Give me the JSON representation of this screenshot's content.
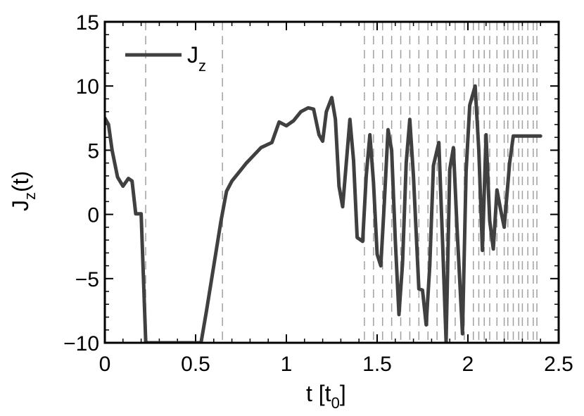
{
  "chart_data": {
    "type": "line",
    "xlabel": {
      "main": "t [t",
      "sub": "0",
      "close": "]"
    },
    "ylabel": {
      "main": "J",
      "sub": "z",
      "tail": "(t)"
    },
    "xlim": [
      0,
      2.5
    ],
    "ylim": [
      -10,
      15
    ],
    "x_ticks": [
      0,
      0.5,
      1,
      1.5,
      2,
      2.5
    ],
    "x_tick_labels": [
      "0",
      "0.5",
      "1",
      "1.5",
      "2",
      "2.5"
    ],
    "y_ticks": [
      -10,
      -5,
      0,
      5,
      10,
      15
    ],
    "y_tick_labels": [
      "−10",
      "−5",
      "0",
      "5",
      "10",
      "15"
    ],
    "x_minor_step": 0.1,
    "y_minor_step": 1,
    "legend": {
      "position": "top-left",
      "main": "J",
      "sub": "z"
    },
    "line_color": "#404040",
    "dashed_line_color": "#a0a0a0",
    "vlines": [
      0.225,
      0.648,
      1.43,
      1.48,
      1.53,
      1.58,
      1.63,
      1.68,
      1.73,
      1.78,
      1.83,
      1.88,
      1.93,
      1.98,
      2.03,
      2.06,
      2.09,
      2.12,
      2.16,
      2.2,
      2.22,
      2.25,
      2.28,
      2.3,
      2.33,
      2.36,
      2.38
    ],
    "series": [
      {
        "x": [
          0,
          0.02,
          0.04,
          0.07,
          0.1,
          0.13,
          0.15,
          0.17,
          0.2,
          0.225,
          0.234,
          0.53,
          0.56,
          0.6,
          0.64,
          0.67,
          0.7,
          0.74,
          0.78,
          0.82,
          0.86,
          0.89,
          0.92,
          0.96,
          1.0,
          1.04,
          1.08,
          1.12,
          1.15,
          1.18,
          1.2,
          1.22,
          1.25,
          1.27,
          1.29,
          1.31,
          1.35,
          1.37,
          1.39,
          1.42,
          1.44,
          1.46,
          1.48,
          1.5,
          1.52,
          1.54,
          1.56,
          1.58,
          1.6,
          1.62,
          1.64,
          1.66,
          1.68,
          1.7,
          1.73,
          1.75,
          1.77,
          1.79,
          1.81,
          1.84,
          1.86,
          1.88,
          1.9,
          1.92,
          1.94,
          1.97,
          1.99,
          2.01,
          2.04,
          2.06,
          2.08,
          2.1,
          2.12,
          2.14,
          2.16,
          2.18,
          2.2,
          2.23,
          2.25,
          2.27,
          2.29,
          2.31,
          2.34,
          2.36,
          2.38,
          2.4
        ],
        "y": [
          7.5,
          7.0,
          5.0,
          2.9,
          2.2,
          2.8,
          2.6,
          0.05,
          0.05,
          -9.9,
          -10,
          -10,
          -7.5,
          -4.0,
          -0.5,
          1.8,
          2.6,
          3.3,
          4.0,
          4.6,
          5.2,
          5.4,
          5.6,
          7.2,
          6.9,
          7.3,
          8.0,
          8.3,
          8.2,
          6.2,
          5.7,
          8.0,
          9.1,
          7.4,
          2.2,
          0.6,
          7.4,
          4.2,
          -1.8,
          -2.1,
          3.0,
          6.2,
          2.5,
          -3.1,
          -4.0,
          1.0,
          6.6,
          5.0,
          -2.0,
          -7.8,
          -3.8,
          4.0,
          7.4,
          3.0,
          -5.8,
          -5.9,
          -8.6,
          -4.0,
          3.8,
          5.6,
          -2.0,
          -9.9,
          3.5,
          5.2,
          -1.0,
          -9.3,
          3.3,
          8.5,
          10.0,
          5.0,
          -2.8,
          6.2,
          -0.5,
          -2.7,
          1.9,
          0.4,
          -1.0,
          4.0,
          6.1,
          6.1,
          6.1,
          6.1,
          6.1,
          6.1,
          6.1,
          6.1
        ]
      }
    ]
  }
}
